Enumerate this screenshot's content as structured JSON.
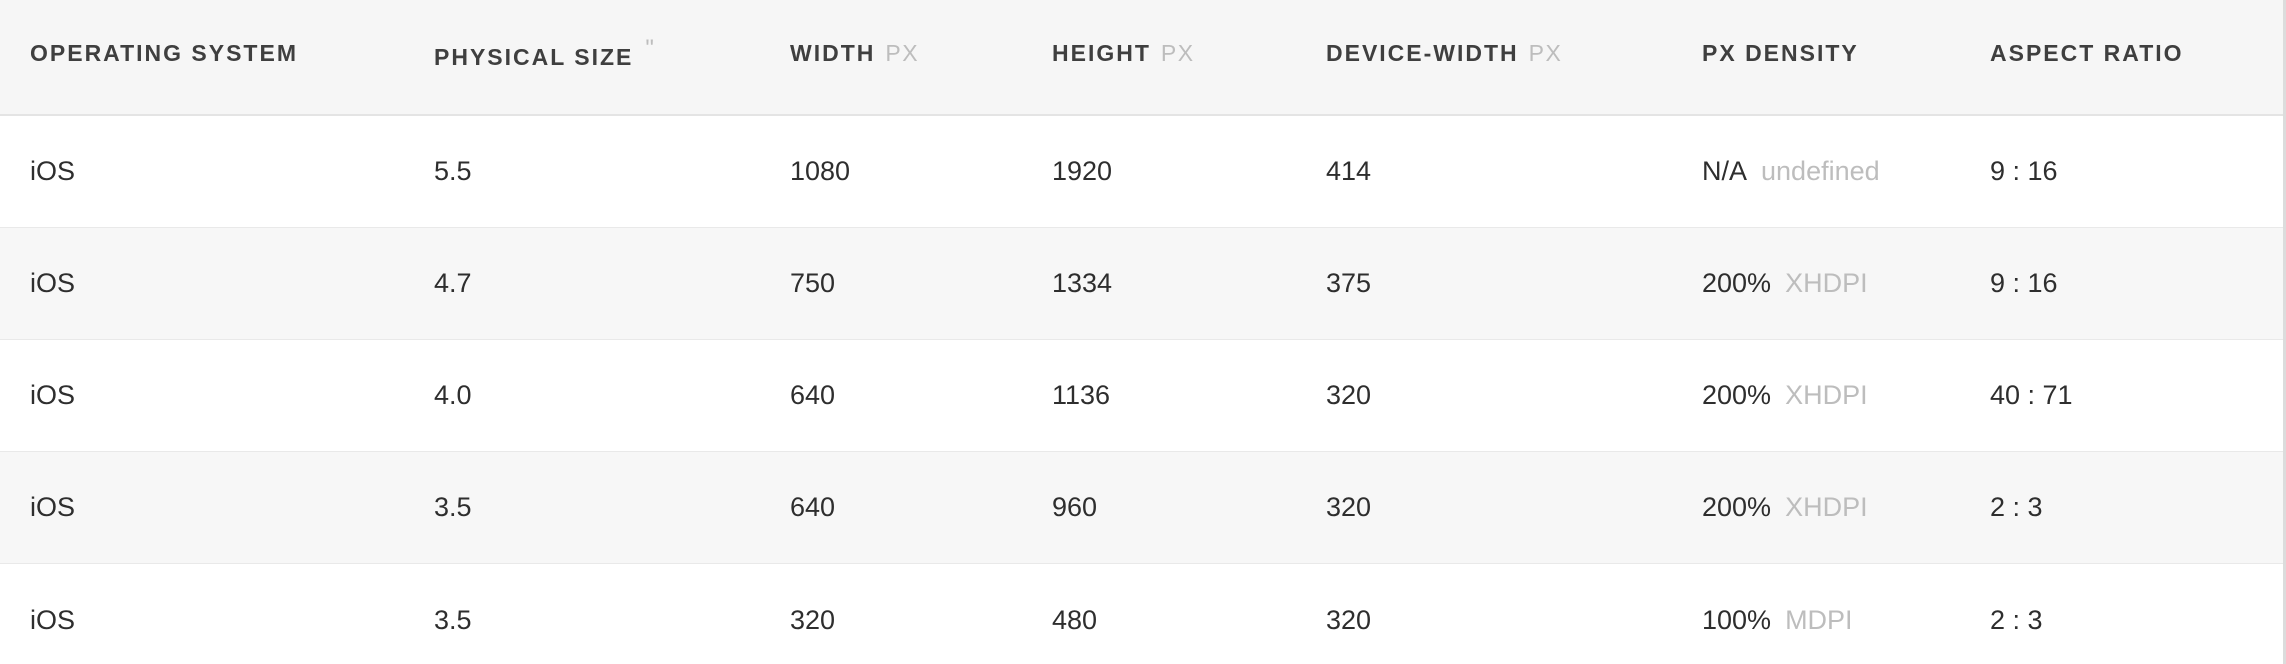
{
  "headers": [
    {
      "label": "OPERATING SYSTEM",
      "unit": ""
    },
    {
      "label": "PHYSICAL SIZE",
      "unit": "\""
    },
    {
      "label": "WIDTH",
      "unit": "PX"
    },
    {
      "label": "HEIGHT",
      "unit": "PX"
    },
    {
      "label": "DEVICE-WIDTH",
      "unit": "PX"
    },
    {
      "label": "PX DENSITY",
      "unit": ""
    },
    {
      "label": "ASPECT RATIO",
      "unit": ""
    }
  ],
  "rows": [
    {
      "os": "iOS",
      "size": "5.5",
      "width": "1080",
      "height": "1920",
      "device_width": "414",
      "density": "N/A",
      "density_class": "undefined",
      "aspect": "9 : 16"
    },
    {
      "os": "iOS",
      "size": "4.7",
      "width": "750",
      "height": "1334",
      "device_width": "375",
      "density": "200%",
      "density_class": "XHDPI",
      "aspect": "9 : 16"
    },
    {
      "os": "iOS",
      "size": "4.0",
      "width": "640",
      "height": "1136",
      "device_width": "320",
      "density": "200%",
      "density_class": "XHDPI",
      "aspect": "40 : 71"
    },
    {
      "os": "iOS",
      "size": "3.5",
      "width": "640",
      "height": "960",
      "device_width": "320",
      "density": "200%",
      "density_class": "XHDPI",
      "aspect": "2 : 3"
    },
    {
      "os": "iOS",
      "size": "3.5",
      "width": "320",
      "height": "480",
      "device_width": "320",
      "density": "100%",
      "density_class": "MDPI",
      "aspect": "2 : 3"
    }
  ]
}
